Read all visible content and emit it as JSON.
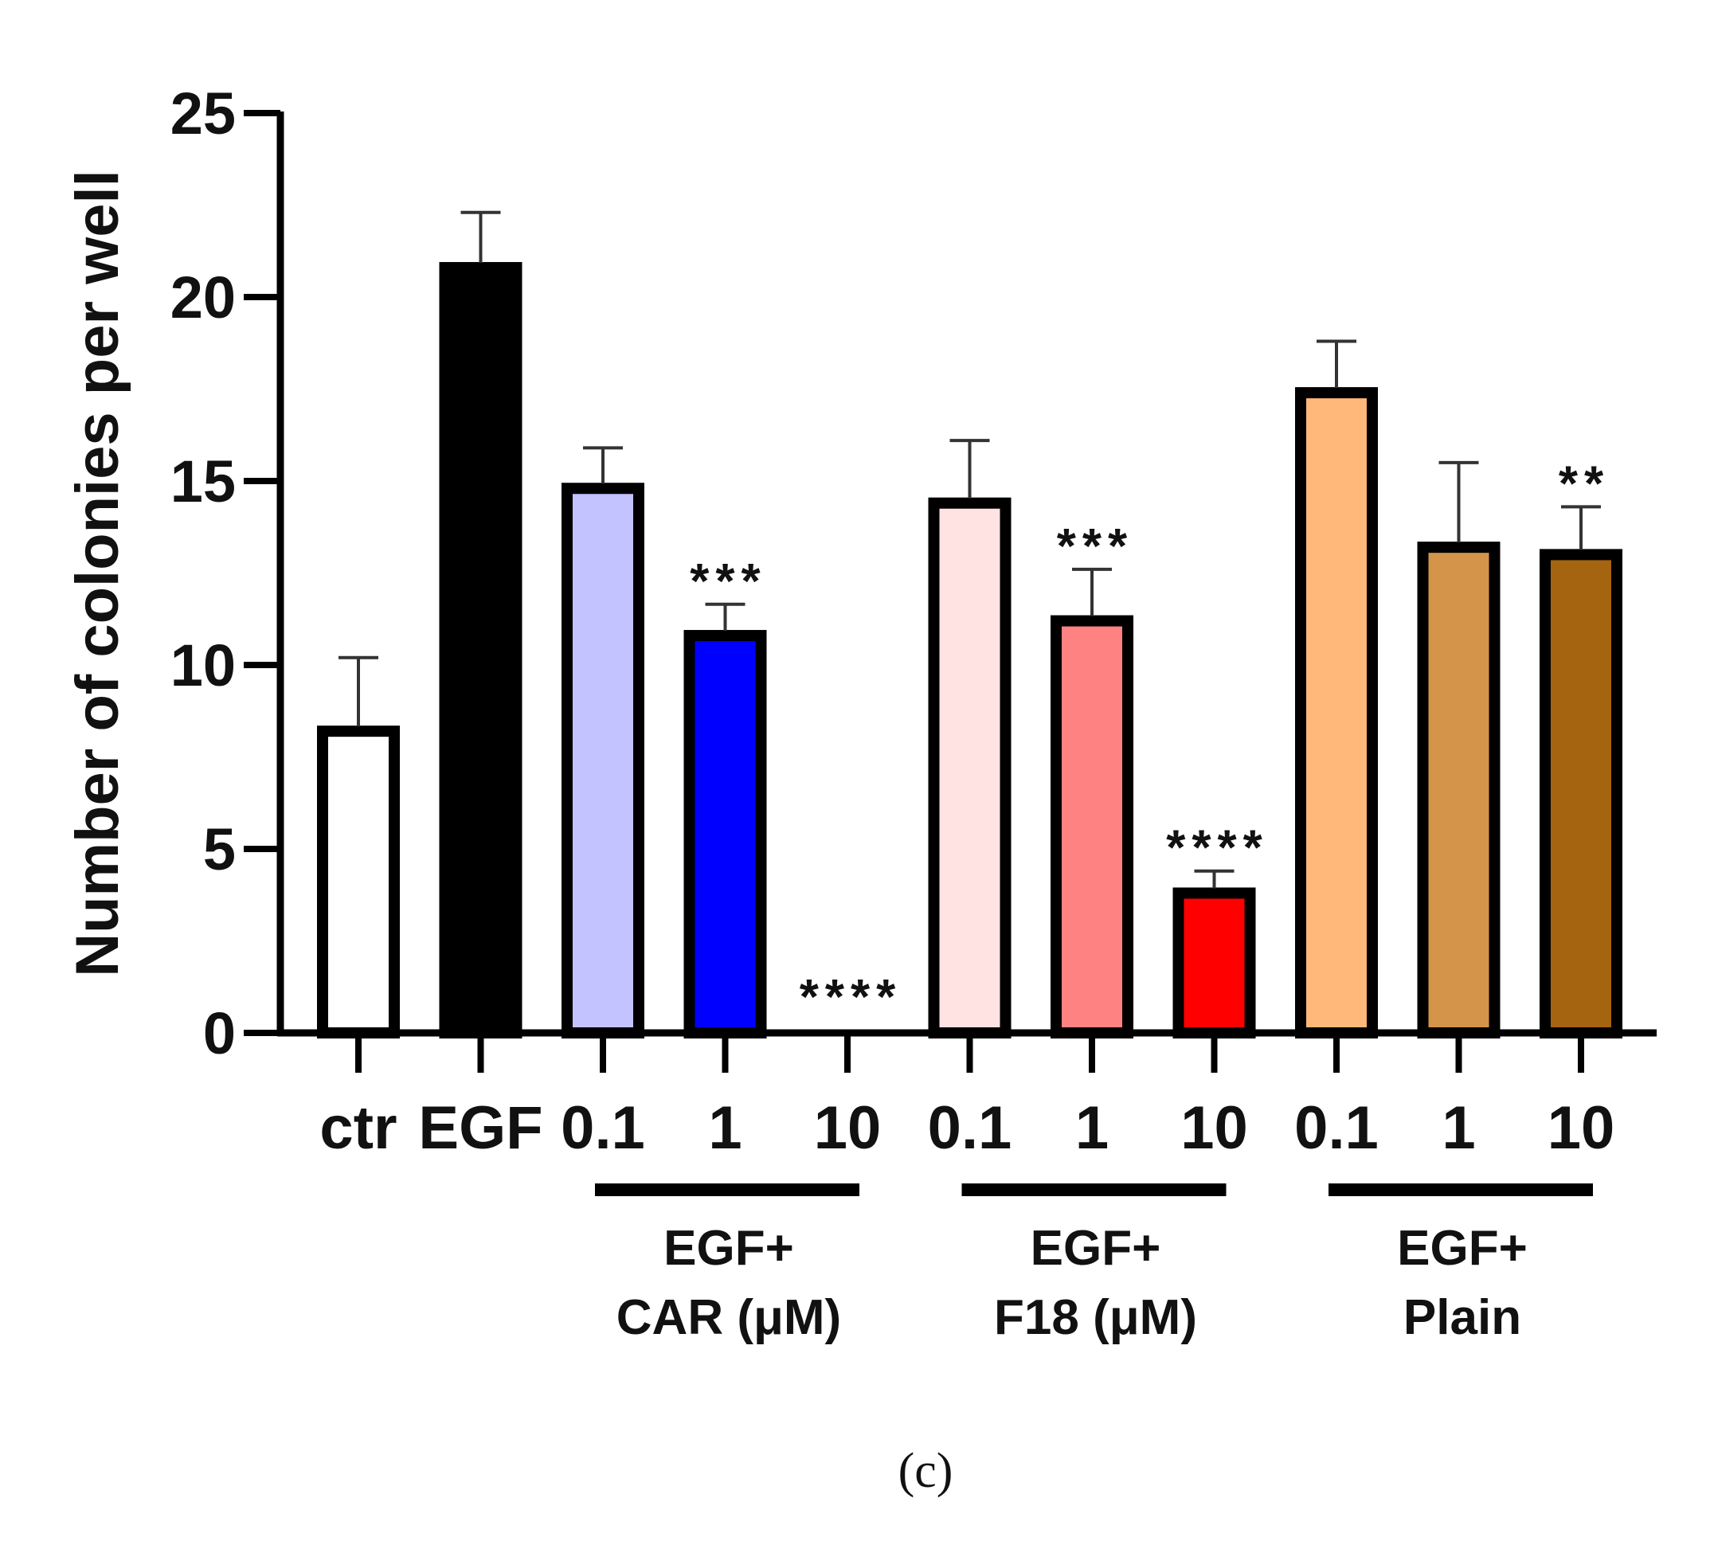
{
  "chart_data": {
    "type": "bar",
    "ylabel": "Number of colonies per well",
    "ylim": [
      0,
      25
    ],
    "yticks": [
      "0",
      "5",
      "10",
      "15",
      "20",
      "25"
    ],
    "panel_label": "(c)",
    "categories": [
      "ctr",
      "EGF",
      "0.1",
      "1",
      "10",
      "0.1",
      "1",
      "10",
      "0.1",
      "1",
      "10"
    ],
    "values": [
      8.2,
      20.8,
      14.8,
      10.8,
      0,
      14.4,
      11.2,
      3.8,
      17.4,
      13.2,
      13.0
    ],
    "errors": [
      2.0,
      1.5,
      1.1,
      0.85,
      0,
      1.7,
      1.4,
      0.6,
      1.4,
      2.3,
      1.3
    ],
    "colors": [
      "#ffffff",
      "#000000",
      "#c3c3ff",
      "#0000ff",
      "#ffffff",
      "#ffe2e2",
      "#ff8282",
      "#ff0000",
      "#ffb87a",
      "#d4944a",
      "#a46410"
    ],
    "significance": [
      "",
      "",
      "",
      "***",
      "****",
      "",
      "***",
      "****",
      "",
      "",
      "**"
    ],
    "groups": [
      {
        "line1": "EGF+",
        "line2": "CAR (μM)",
        "from": 2,
        "to": 4
      },
      {
        "line1": "EGF+",
        "line2": "F18 (μM)",
        "from": 5,
        "to": 7
      },
      {
        "line1": "EGF+",
        "line2": "Plain",
        "from": 8,
        "to": 10
      }
    ]
  }
}
